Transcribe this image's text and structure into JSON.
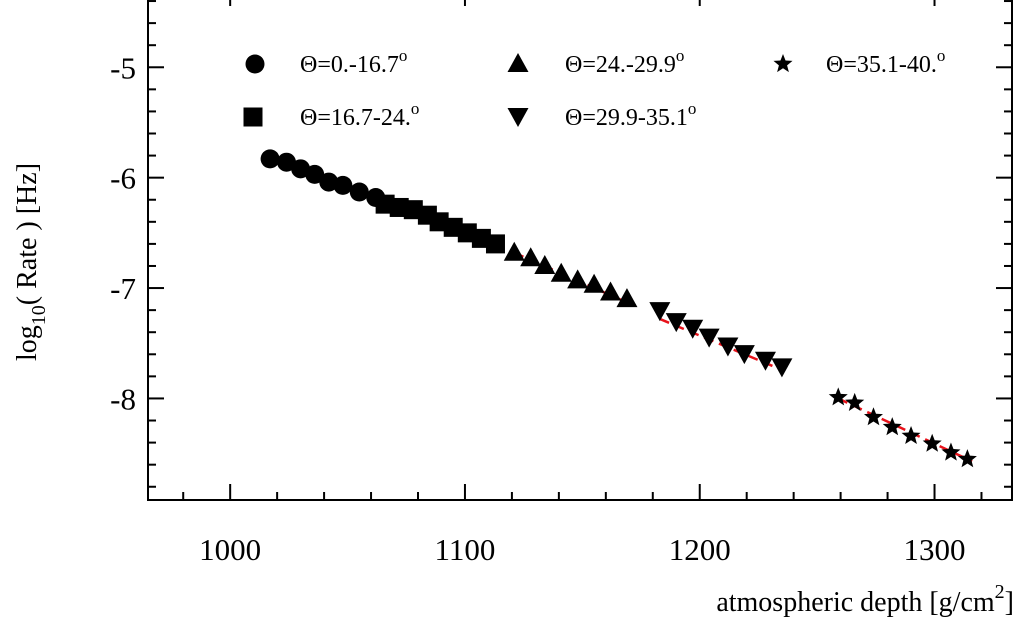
{
  "chart_data": {
    "type": "scatter",
    "title": "",
    "xlabel": {
      "main": "atmospheric depth [g/cm",
      "sup": "2",
      "close": "]"
    },
    "ylabel": {
      "main": "log",
      "sub": "10",
      "rest": "( Rate ) [Hz]"
    },
    "xlim": [
      965,
      1333
    ],
    "ylim": [
      -8.92,
      -4.3
    ],
    "x_ticks": [
      1000,
      1100,
      1200,
      1300
    ],
    "x_tick_labels": [
      "1000",
      "1100",
      "1200",
      "1300"
    ],
    "y_ticks": [
      -5,
      -6,
      -7,
      -8
    ],
    "y_tick_labels": [
      "-5",
      "-6",
      "-7",
      "-8"
    ],
    "grid": false,
    "legend_placement": "top",
    "fit_color": "#e8121a",
    "series": [
      {
        "name": {
          "main": "Θ=0.-16.7",
          "sup": "o"
        },
        "marker": "circle",
        "x": [
          1017,
          1024,
          1030,
          1036,
          1042,
          1048,
          1055,
          1062
        ],
        "y": [
          -5.83,
          -5.86,
          -5.92,
          -5.97,
          -6.04,
          -6.07,
          -6.13,
          -6.18
        ],
        "fit": {
          "x": [
            1020,
            1065
          ],
          "y": [
            -5.86,
            -6.19
          ]
        }
      },
      {
        "name": {
          "main": "Θ=16.7-24.",
          "sup": "o"
        },
        "marker": "square",
        "x": [
          1066,
          1072,
          1078,
          1084,
          1089,
          1095,
          1101,
          1107,
          1113
        ],
        "y": [
          -6.24,
          -6.27,
          -6.29,
          -6.34,
          -6.4,
          -6.45,
          -6.5,
          -6.55,
          -6.6
        ],
        "fit": {
          "x": [
            1066,
            1115
          ],
          "y": [
            -6.21,
            -6.58
          ]
        }
      },
      {
        "name": {
          "main": "Θ=24.-29.9",
          "sup": "o"
        },
        "marker": "triangle-up",
        "x": [
          1121,
          1128,
          1134,
          1141,
          1148,
          1155,
          1162,
          1169
        ],
        "y": [
          -6.68,
          -6.73,
          -6.8,
          -6.87,
          -6.93,
          -6.97,
          -7.04,
          -7.1
        ],
        "fit": {
          "x": [
            1121,
            1170
          ],
          "y": [
            -6.68,
            -7.14
          ]
        }
      },
      {
        "name": {
          "main": "Θ=29.9-35.1",
          "sup": "o"
        },
        "marker": "triangle-down",
        "x": [
          1183,
          1190,
          1197,
          1204,
          1212,
          1219,
          1228,
          1235
        ],
        "y": [
          -7.2,
          -7.3,
          -7.36,
          -7.44,
          -7.52,
          -7.59,
          -7.65,
          -7.71
        ],
        "fit": {
          "x": [
            1183,
            1236
          ],
          "y": [
            -7.28,
            -7.75
          ]
        }
      },
      {
        "name": {
          "main": "Θ=35.1-40.",
          "sup": "o"
        },
        "marker": "star",
        "x": [
          1259,
          1266,
          1274,
          1282,
          1290,
          1299,
          1307,
          1314
        ],
        "y": [
          -7.99,
          -8.04,
          -8.17,
          -8.26,
          -8.34,
          -8.41,
          -8.49,
          -8.55
        ],
        "fit": {
          "x": [
            1259,
            1316
          ],
          "y": [
            -8.0,
            -8.57
          ]
        }
      }
    ]
  }
}
